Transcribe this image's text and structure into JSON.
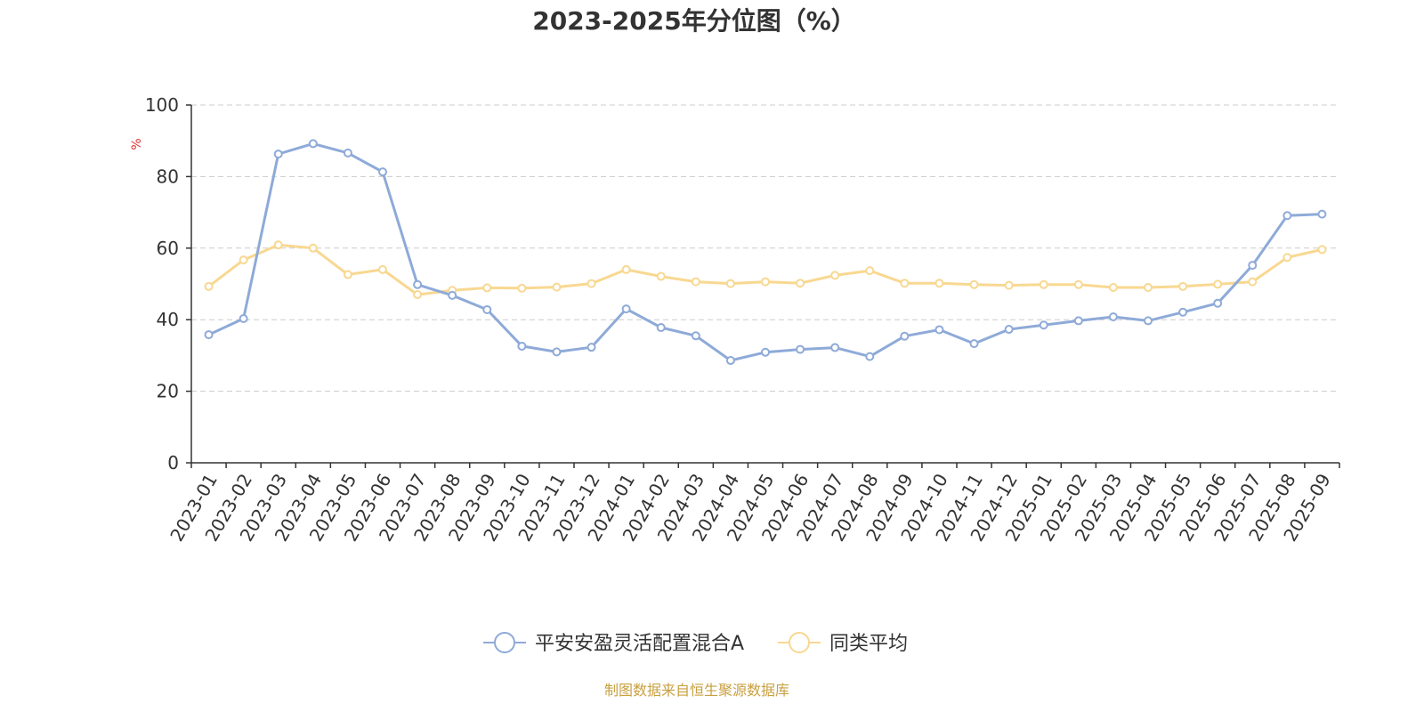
{
  "chart_data": {
    "type": "line",
    "title": "2023-2025年分位图（%）",
    "ylabel": "%",
    "xlabel": "",
    "ylim": [
      0,
      100
    ],
    "yticks": [
      0,
      20,
      40,
      60,
      80,
      100
    ],
    "grid": "horizontal dashed",
    "legend_position": "bottom-center",
    "categories": [
      "2023-01",
      "2023-02",
      "2023-03",
      "2023-04",
      "2023-05",
      "2023-06",
      "2023-07",
      "2023-08",
      "2023-09",
      "2023-10",
      "2023-11",
      "2023-12",
      "2024-01",
      "2024-02",
      "2024-03",
      "2024-04",
      "2024-05",
      "2024-06",
      "2024-07",
      "2024-08",
      "2024-09",
      "2024-10",
      "2024-11",
      "2024-12",
      "2025-01",
      "2025-02",
      "2025-03",
      "2025-04",
      "2025-05",
      "2025-06",
      "2025-07",
      "2025-08",
      "2025-09"
    ],
    "series": [
      {
        "name": "平安安盈灵活配置混合A",
        "color": "#8eaad8",
        "values": [
          35.8,
          40.3,
          86.3,
          89.2,
          86.6,
          81.3,
          49.8,
          46.8,
          42.8,
          32.6,
          31.0,
          32.3,
          43.0,
          37.8,
          35.5,
          28.6,
          30.9,
          31.7,
          32.2,
          29.7,
          35.4,
          37.2,
          33.3,
          37.3,
          38.5,
          39.7,
          40.8,
          39.7,
          42.1,
          44.6,
          55.2,
          69.1,
          69.5
        ]
      },
      {
        "name": "同类平均",
        "color": "#f8d891",
        "values": [
          49.3,
          56.7,
          60.9,
          60.0,
          52.6,
          54.0,
          47.0,
          48.2,
          48.9,
          48.8,
          49.1,
          50.1,
          54.0,
          52.1,
          50.6,
          50.1,
          50.6,
          50.2,
          52.4,
          53.7,
          50.2,
          50.2,
          49.8,
          49.6,
          49.8,
          49.8,
          49.0,
          49.0,
          49.3,
          49.9,
          50.6,
          57.4,
          59.6
        ]
      }
    ]
  },
  "footer": {
    "source": "制图数据来自恒生聚源数据库"
  },
  "colors": {
    "unit_label": "#e03030",
    "source_text": "#c8a040",
    "axis": "#333333",
    "grid": "#cccccc"
  }
}
